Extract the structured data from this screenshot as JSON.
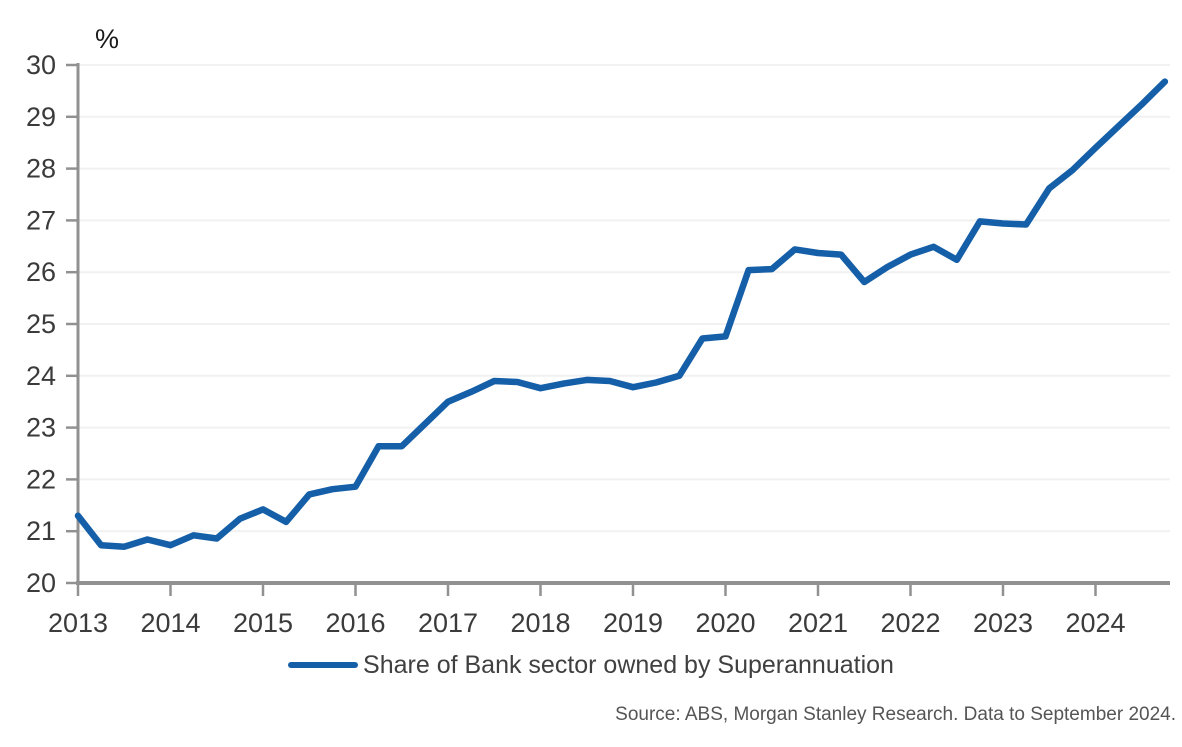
{
  "chart_data": {
    "type": "line",
    "title": "",
    "y_axis_unit_label": "%",
    "frequency": "quarterly",
    "grid": "horizontal-light",
    "legend_position": "bottom-center",
    "xlim": [
      2013,
      2024.8
    ],
    "ylim": [
      20,
      30
    ],
    "x_ticks": [
      2013,
      2014,
      2015,
      2016,
      2017,
      2018,
      2019,
      2020,
      2021,
      2022,
      2023,
      2024
    ],
    "y_ticks": [
      20,
      21,
      22,
      23,
      24,
      25,
      26,
      27,
      28,
      29,
      30
    ],
    "series": [
      {
        "name": "Share of Bank sector owned by Superannuation",
        "color": "#155fa8",
        "x": [
          2013.0,
          2013.25,
          2013.5,
          2013.75,
          2014.0,
          2014.25,
          2014.5,
          2014.75,
          2015.0,
          2015.25,
          2015.5,
          2015.75,
          2016.0,
          2016.25,
          2016.5,
          2016.75,
          2017.0,
          2017.25,
          2017.5,
          2017.75,
          2018.0,
          2018.25,
          2018.5,
          2018.75,
          2019.0,
          2019.25,
          2019.5,
          2019.75,
          2020.0,
          2020.25,
          2020.5,
          2020.75,
          2021.0,
          2021.25,
          2021.5,
          2021.75,
          2022.0,
          2022.25,
          2022.5,
          2022.75,
          2023.0,
          2023.25,
          2023.5,
          2023.75,
          2024.0,
          2024.25,
          2024.5,
          2024.75
        ],
        "values": [
          21.3,
          20.73,
          20.7,
          20.84,
          20.73,
          20.92,
          20.86,
          21.24,
          21.42,
          21.18,
          21.71,
          21.81,
          21.86,
          22.64,
          22.64,
          23.07,
          23.5,
          23.69,
          23.9,
          23.88,
          23.76,
          23.85,
          23.92,
          23.9,
          23.78,
          23.87,
          24.0,
          24.72,
          24.76,
          26.04,
          26.06,
          26.44,
          26.37,
          26.34,
          25.81,
          26.1,
          26.34,
          26.49,
          26.24,
          26.98,
          26.94,
          26.92,
          27.62,
          27.97,
          28.4,
          28.82,
          29.24,
          29.68
        ]
      }
    ]
  },
  "legend": {
    "label": "Share of Bank sector owned by Superannuation"
  },
  "source_note": "Source: ABS, Morgan Stanley Research. Data to September 2024.",
  "colors": {
    "line": "#155fa8",
    "axis": "#919191",
    "tick_labels": "#3b3b3b",
    "gridline": "#f1f1f1",
    "legend_text": "#404040",
    "source_text": "#555555"
  }
}
